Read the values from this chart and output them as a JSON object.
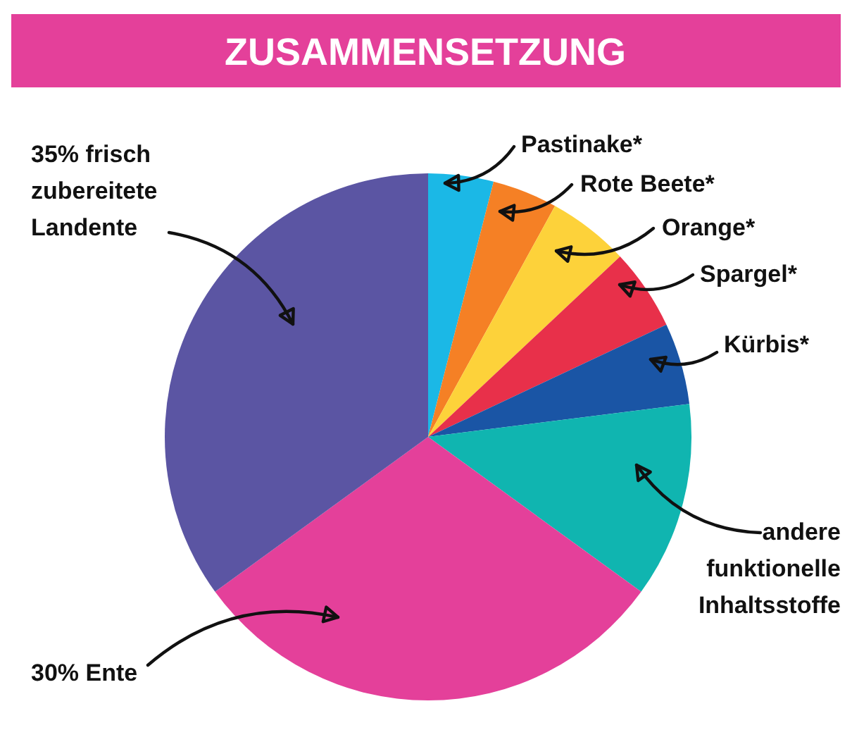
{
  "chart_data": {
    "type": "pie",
    "title": "ZUSAMMENSETZUNG",
    "categories": [
      "Pastinake*",
      "Rote Beete*",
      "Orange*",
      "Spargel*",
      "Kürbis*",
      "andere funktionelle Inhaltsstoffe",
      "30% Ente",
      "35% frisch zubereitete Landente"
    ],
    "values": [
      4,
      4,
      5,
      5,
      5,
      12,
      30,
      35
    ],
    "colors": [
      "#1bb8e6",
      "#f58025",
      "#fdd23a",
      "#e8304a",
      "#1a55a5",
      "#10b5b0",
      "#e4409a",
      "#5b55a3"
    ]
  }
}
